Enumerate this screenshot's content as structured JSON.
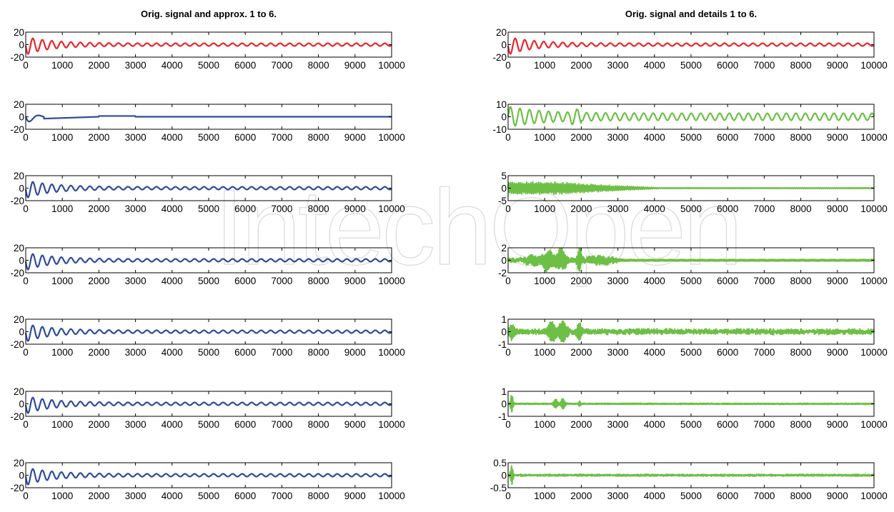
{
  "watermark": "IntechOpen",
  "chart_data": [
    {
      "type": "line",
      "title": "Orig. signal and approx. 1 to 6.",
      "panels": [
        {
          "role": "original",
          "color": "#e8262b",
          "ylim": [
            -20,
            20
          ],
          "yticks": [
            20,
            0,
            -20
          ],
          "signal": {
            "kind": "transient",
            "A": 12,
            "tau": 700,
            "period": 260,
            "rampEnd": 0,
            "floor": 2.2
          }
        },
        {
          "role": "approx 6",
          "color": "#2e4a9a",
          "ylim": [
            -20,
            20
          ],
          "yticks": [
            20,
            0,
            -20
          ],
          "signal": {
            "kind": "approx_low",
            "A": 12,
            "tau": 650
          }
        },
        {
          "role": "approx 5",
          "color": "#2e4a9a",
          "ylim": [
            -20,
            20
          ],
          "yticks": [
            20,
            0,
            -20
          ],
          "signal": {
            "kind": "transient",
            "A": 12,
            "tau": 700,
            "period": 260,
            "rampEnd": 0,
            "floor": 2.2
          }
        },
        {
          "role": "approx 4",
          "color": "#2e4a9a",
          "ylim": [
            -20,
            20
          ],
          "yticks": [
            20,
            0,
            -20
          ],
          "signal": {
            "kind": "transient",
            "A": 12,
            "tau": 700,
            "period": 260,
            "rampEnd": 0,
            "floor": 2.2
          }
        },
        {
          "role": "approx 3",
          "color": "#2e4a9a",
          "ylim": [
            -20,
            20
          ],
          "yticks": [
            20,
            0,
            -20
          ],
          "signal": {
            "kind": "transient",
            "A": 12,
            "tau": 700,
            "period": 260,
            "rampEnd": 0,
            "floor": 2.2
          }
        },
        {
          "role": "approx 2",
          "color": "#2e4a9a",
          "ylim": [
            -20,
            20
          ],
          "yticks": [
            20,
            0,
            -20
          ],
          "signal": {
            "kind": "transient",
            "A": 12,
            "tau": 700,
            "period": 260,
            "rampEnd": 0,
            "floor": 2.2
          }
        },
        {
          "role": "approx 1",
          "color": "#2e4a9a",
          "ylim": [
            -20,
            20
          ],
          "yticks": [
            20,
            0,
            -20
          ],
          "signal": {
            "kind": "transient",
            "A": 12,
            "tau": 700,
            "period": 260,
            "rampEnd": 0,
            "floor": 2.2
          }
        }
      ],
      "xlim": [
        0,
        10000
      ],
      "xticks": [
        0,
        1000,
        2000,
        3000,
        4000,
        5000,
        6000,
        7000,
        8000,
        9000,
        10000
      ]
    },
    {
      "type": "line",
      "title": "Orig. signal and details 1 to 6.",
      "panels": [
        {
          "role": "original",
          "color": "#e8262b",
          "ylim": [
            -20,
            20
          ],
          "yticks": [
            20,
            0,
            -20
          ],
          "signal": {
            "kind": "transient",
            "A": 12,
            "tau": 700,
            "period": 260,
            "rampEnd": 0,
            "floor": 2.2
          }
        },
        {
          "role": "detail 6",
          "color": "#6dbf45",
          "ylim": [
            -10,
            10
          ],
          "yticks": [
            10,
            0,
            -10
          ],
          "signal": {
            "kind": "osc",
            "A": 5.5,
            "tau": 900,
            "period": 260,
            "floor": 2.8,
            "swell": [
              1700,
              2000
            ]
          }
        },
        {
          "role": "detail 5",
          "color": "#6dbf45",
          "ylim": [
            -5,
            5
          ],
          "yticks": [
            5,
            0,
            -5
          ],
          "signal": {
            "kind": "burst",
            "amp": 2.6,
            "decay": [
              1000,
              4200
            ],
            "period": 55,
            "floor": 0.15
          }
        },
        {
          "role": "detail 4",
          "color": "#6dbf45",
          "ylim": [
            -2,
            2
          ],
          "yticks": [
            2,
            0,
            -2
          ],
          "signal": {
            "kind": "packets",
            "bursts": [
              [
                1100,
                140,
                1.6
              ],
              [
                1450,
                140,
                1.7
              ],
              [
                1950,
                60,
                2.0
              ],
              [
                700,
                250,
                0.7
              ],
              [
                2500,
                400,
                0.5
              ]
            ],
            "period": 22,
            "floor": 0.12,
            "noise": 0.25,
            "noiseEnd": 3000
          }
        },
        {
          "role": "detail 3",
          "color": "#6dbf45",
          "ylim": [
            -1,
            1
          ],
          "yticks": [
            1,
            0,
            -1
          ],
          "signal": {
            "kind": "packets",
            "bursts": [
              [
                1200,
                110,
                0.7
              ],
              [
                1500,
                110,
                0.8
              ],
              [
                1950,
                70,
                0.6
              ],
              [
                100,
                80,
                0.5
              ]
            ],
            "period": 12,
            "floor": 0.12,
            "noise": 0.12,
            "noiseEnd": 10000
          }
        },
        {
          "role": "detail 2",
          "color": "#6dbf45",
          "ylim": [
            -1,
            1
          ],
          "yticks": [
            1,
            0,
            -1
          ],
          "signal": {
            "kind": "packets",
            "bursts": [
              [
                100,
                40,
                0.7
              ],
              [
                1300,
                60,
                0.35
              ],
              [
                1500,
                60,
                0.4
              ],
              [
                1950,
                30,
                0.2
              ]
            ],
            "period": 6,
            "floor": 0.03,
            "noise": 0.02,
            "noiseEnd": 10000
          }
        },
        {
          "role": "detail 1",
          "color": "#6dbf45",
          "ylim": [
            -0.5,
            0.5
          ],
          "yticks": [
            0.5,
            0,
            -0.5
          ],
          "signal": {
            "kind": "packets",
            "bursts": [
              [
                100,
                40,
                0.35
              ]
            ],
            "period": 4,
            "floor": 0.02,
            "noise": 0.02,
            "noiseEnd": 10000
          }
        }
      ],
      "xlim": [
        0,
        10000
      ],
      "xticks": [
        0,
        1000,
        2000,
        3000,
        4000,
        5000,
        6000,
        7000,
        8000,
        9000,
        10000
      ]
    }
  ]
}
